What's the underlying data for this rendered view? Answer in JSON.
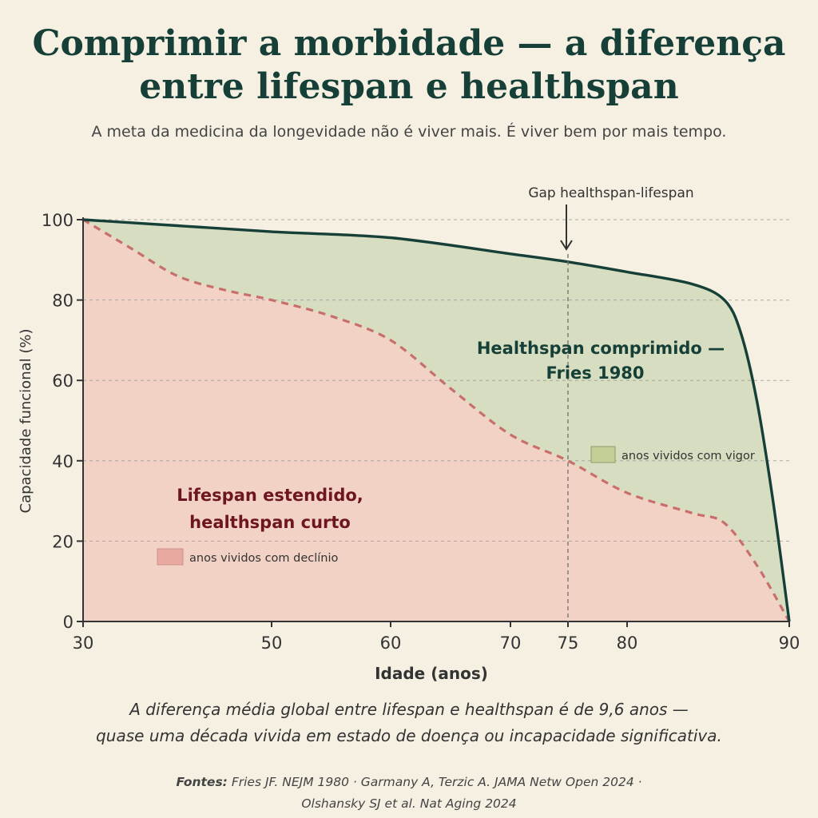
{
  "title_line1": "Comprimir a morbidade — a diferença",
  "title_line2": "entre lifespan e healthspan",
  "subtitle": "A meta da medicina da longevidade não é viver mais. É viver bem por mais tempo.",
  "caption_line1": "A diferença média global entre lifespan e healthspan é de 9,6 anos —",
  "caption_line2": "quase uma década vivida em estado de doença ou incapacidade significativa.",
  "sources_label": "Fontes:",
  "sources_line1": "Fries JF. NEJM 1980 · Garmany A, Terzic A. JAMA Netw Open 2024 ·",
  "sources_line2": "Olshansky SJ et al. Nat Aging 2024",
  "colors": {
    "healthspan_line": "#153f37",
    "healthspan_fill": "#d6ddc0",
    "decline_line": "#c76f6b",
    "decline_fill": "#f2d2c5",
    "grid": "#9a9a9a"
  },
  "chart_data": {
    "type": "area",
    "xlabel": "Idade (anos)",
    "ylabel": "Capacidade funcional (%)",
    "xlim": [
      30,
      90
    ],
    "ylim": [
      0,
      100
    ],
    "x_ticks": [
      30,
      50,
      60,
      70,
      75,
      80,
      90
    ],
    "y_ticks": [
      0,
      20,
      40,
      60,
      80,
      100
    ],
    "grid": "horizontal dashed",
    "series": [
      {
        "style": "solid",
        "x": [
          30,
          40,
          50,
          60,
          70,
          75,
          80,
          84,
          86,
          87,
          88,
          89,
          90
        ],
        "y": [
          100,
          98.5,
          97,
          95.5,
          91.5,
          89.5,
          87,
          84,
          80,
          72,
          55,
          30,
          0
        ]
      },
      {
        "style": "dashed",
        "x": [
          30,
          35,
          40,
          45,
          50,
          55,
          60,
          65,
          70,
          75,
          80,
          84,
          86,
          88,
          90
        ],
        "y": [
          100,
          93,
          86,
          82.5,
          80,
          76,
          70,
          58,
          46.5,
          40,
          32,
          27,
          24.5,
          14,
          0
        ]
      }
    ],
    "annotations": {
      "gap_marker": {
        "x": 75,
        "label": "Gap healthspan-lifespan"
      },
      "healthspan_label_line1": "Healthspan comprimido —",
      "healthspan_label_line2": "Fries 1980",
      "lifespan_label_line1": "Lifespan estendido,",
      "lifespan_label_line2": "healthspan curto",
      "legend_vigor": "anos vividos com vigor",
      "legend_decline": "anos vividos com declínio"
    }
  }
}
